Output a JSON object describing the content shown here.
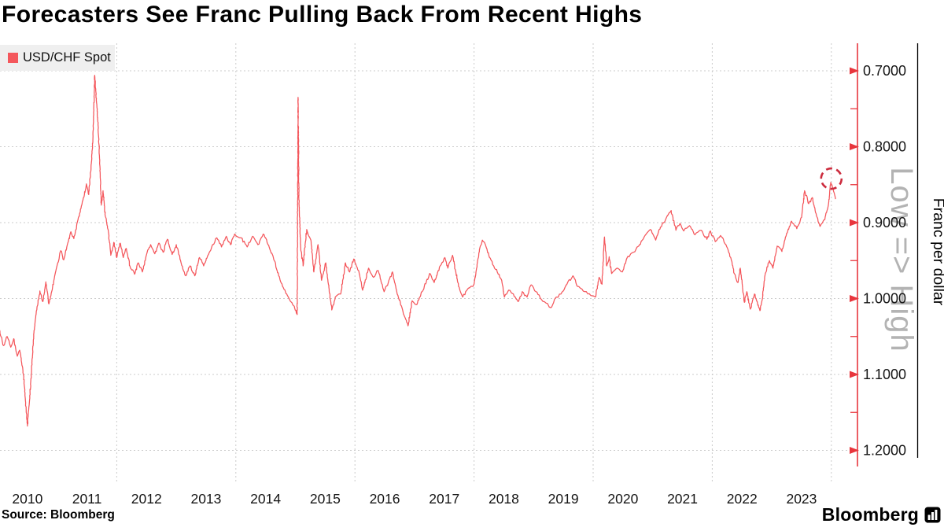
{
  "title": "Forecasters See Franc Pulling Back From Recent Highs",
  "legend": {
    "label": "USD/CHF Spot",
    "swatch_color": "#f4575c"
  },
  "source": "Source: Bloomberg",
  "logo": {
    "text": "Bloomberg",
    "icon": "bloomberg-bars-icon"
  },
  "chart_data": {
    "type": "line",
    "title": "Forecasters See Franc Pulling Back From Recent Highs",
    "legend_position": "top-left",
    "grid": true,
    "x_axis": {
      "tick_labels": [
        "2010",
        "2011",
        "2012",
        "2013",
        "2014",
        "2015",
        "2016",
        "2017",
        "2018",
        "2019",
        "2020",
        "2021",
        "2022",
        "2023"
      ],
      "gridline_years": [
        2012,
        2014,
        2016,
        2018,
        2020,
        2022,
        2024
      ],
      "range_years": [
        2010.0,
        2024.4
      ]
    },
    "y_axis": {
      "title": "Franc per dollar",
      "direction_label": "Low => High",
      "inverted": true,
      "side": "right",
      "ticks": [
        {
          "label": "0.7000",
          "value": 0.7
        },
        {
          "label": "0.8000",
          "value": 0.8
        },
        {
          "label": "0.9000",
          "value": 0.9
        },
        {
          "label": "1.0000",
          "value": 1.0
        },
        {
          "label": "1.1000",
          "value": 1.1
        },
        {
          "label": "1.2000",
          "value": 1.2
        }
      ],
      "minor_ticks": [
        0.75,
        0.85,
        0.95,
        1.05,
        1.15
      ]
    },
    "colors": {
      "line": "#f4575c",
      "axis": "#e8363d",
      "grid": "#cbcbcb",
      "annotation": "#cc2b3d",
      "direction_label": "#b3b3b3",
      "tick_text": "#141414"
    },
    "annotation": {
      "type": "dashed-circle",
      "year": 2024.0,
      "value": 0.842,
      "radius_px": 13,
      "meaning": "recent franc high circled"
    },
    "series": [
      {
        "name": "USD/CHF Spot",
        "color": "#f4575c",
        "points": [
          [
            2010.0,
            1.03
          ],
          [
            2010.04,
            1.046
          ],
          [
            2010.1,
            1.062
          ],
          [
            2010.16,
            1.05
          ],
          [
            2010.22,
            1.064
          ],
          [
            2010.27,
            1.053
          ],
          [
            2010.33,
            1.076
          ],
          [
            2010.37,
            1.068
          ],
          [
            2010.42,
            1.091
          ],
          [
            2010.46,
            1.125
          ],
          [
            2010.5,
            1.168
          ],
          [
            2010.53,
            1.14
          ],
          [
            2010.57,
            1.095
          ],
          [
            2010.61,
            1.044
          ],
          [
            2010.66,
            1.012
          ],
          [
            2010.71,
            0.99
          ],
          [
            2010.76,
            1.004
          ],
          [
            2010.81,
            0.978
          ],
          [
            2010.86,
            1.007
          ],
          [
            2010.91,
            0.99
          ],
          [
            2010.97,
            0.966
          ],
          [
            2011.01,
            0.953
          ],
          [
            2011.06,
            0.937
          ],
          [
            2011.11,
            0.949
          ],
          [
            2011.17,
            0.929
          ],
          [
            2011.23,
            0.912
          ],
          [
            2011.28,
            0.921
          ],
          [
            2011.34,
            0.899
          ],
          [
            2011.4,
            0.881
          ],
          [
            2011.45,
            0.866
          ],
          [
            2011.49,
            0.849
          ],
          [
            2011.53,
            0.863
          ],
          [
            2011.57,
            0.824
          ],
          [
            2011.6,
            0.79
          ],
          [
            2011.63,
            0.706
          ],
          [
            2011.65,
            0.728
          ],
          [
            2011.68,
            0.762
          ],
          [
            2011.71,
            0.812
          ],
          [
            2011.74,
            0.877
          ],
          [
            2011.77,
            0.858
          ],
          [
            2011.81,
            0.892
          ],
          [
            2011.86,
            0.912
          ],
          [
            2011.9,
            0.943
          ],
          [
            2011.95,
            0.926
          ],
          [
            2012.0,
            0.946
          ],
          [
            2012.06,
            0.927
          ],
          [
            2012.11,
            0.946
          ],
          [
            2012.16,
            0.934
          ],
          [
            2012.22,
            0.957
          ],
          [
            2012.3,
            0.968
          ],
          [
            2012.36,
            0.953
          ],
          [
            2012.43,
            0.965
          ],
          [
            2012.5,
            0.942
          ],
          [
            2012.57,
            0.929
          ],
          [
            2012.64,
            0.941
          ],
          [
            2012.71,
            0.927
          ],
          [
            2012.78,
            0.939
          ],
          [
            2012.85,
            0.922
          ],
          [
            2012.93,
            0.942
          ],
          [
            2013.0,
            0.929
          ],
          [
            2013.08,
            0.953
          ],
          [
            2013.16,
            0.97
          ],
          [
            2013.23,
            0.957
          ],
          [
            2013.31,
            0.97
          ],
          [
            2013.39,
            0.946
          ],
          [
            2013.46,
            0.957
          ],
          [
            2013.54,
            0.942
          ],
          [
            2013.61,
            0.929
          ],
          [
            2013.68,
            0.92
          ],
          [
            2013.76,
            0.932
          ],
          [
            2013.84,
            0.918
          ],
          [
            2013.91,
            0.929
          ],
          [
            2013.98,
            0.915
          ],
          [
            2014.09,
            0.92
          ],
          [
            2014.19,
            0.932
          ],
          [
            2014.28,
            0.918
          ],
          [
            2014.37,
            0.929
          ],
          [
            2014.46,
            0.915
          ],
          [
            2014.54,
            0.929
          ],
          [
            2014.63,
            0.946
          ],
          [
            2014.72,
            0.97
          ],
          [
            2014.81,
            0.988
          ],
          [
            2014.9,
            1.001
          ],
          [
            2014.98,
            1.01
          ],
          [
            2015.03,
            1.021
          ],
          [
            2015.045,
            0.735
          ],
          [
            2015.06,
            0.87
          ],
          [
            2015.09,
            0.934
          ],
          [
            2015.13,
            0.957
          ],
          [
            2015.19,
            0.909
          ],
          [
            2015.26,
            0.923
          ],
          [
            2015.31,
            0.965
          ],
          [
            2015.38,
            0.929
          ],
          [
            2015.44,
            0.976
          ],
          [
            2015.51,
            0.953
          ],
          [
            2015.61,
            1.015
          ],
          [
            2015.67,
            0.998
          ],
          [
            2015.76,
            0.994
          ],
          [
            2015.84,
            0.953
          ],
          [
            2015.91,
            0.965
          ],
          [
            2015.98,
            0.948
          ],
          [
            2016.06,
            0.963
          ],
          [
            2016.13,
            0.989
          ],
          [
            2016.23,
            0.96
          ],
          [
            2016.31,
            0.972
          ],
          [
            2016.39,
            0.963
          ],
          [
            2016.49,
            0.991
          ],
          [
            2016.56,
            0.979
          ],
          [
            2016.63,
            0.965
          ],
          [
            2016.71,
            0.994
          ],
          [
            2016.79,
            1.012
          ],
          [
            2016.89,
            1.036
          ],
          [
            2016.96,
            1.003
          ],
          [
            2017.04,
            1.008
          ],
          [
            2017.13,
            0.991
          ],
          [
            2017.26,
            0.967
          ],
          [
            2017.33,
            0.979
          ],
          [
            2017.43,
            0.957
          ],
          [
            2017.51,
            0.946
          ],
          [
            2017.56,
            0.96
          ],
          [
            2017.64,
            0.943
          ],
          [
            2017.74,
            0.984
          ],
          [
            2017.81,
            0.998
          ],
          [
            2017.88,
            0.989
          ],
          [
            2018.0,
            0.981
          ],
          [
            2018.09,
            0.936
          ],
          [
            2018.14,
            0.923
          ],
          [
            2018.19,
            0.929
          ],
          [
            2018.26,
            0.946
          ],
          [
            2018.33,
            0.957
          ],
          [
            2018.39,
            0.965
          ],
          [
            2018.46,
            0.975
          ],
          [
            2018.51,
            0.998
          ],
          [
            2018.58,
            0.989
          ],
          [
            2018.66,
            0.994
          ],
          [
            2018.74,
            1.004
          ],
          [
            2018.81,
            0.991
          ],
          [
            2018.89,
            0.998
          ],
          [
            2018.96,
            0.982
          ],
          [
            2019.04,
            0.991
          ],
          [
            2019.13,
            1.001
          ],
          [
            2019.21,
            1.006
          ],
          [
            2019.29,
            1.012
          ],
          [
            2019.38,
            0.998
          ],
          [
            2019.46,
            0.994
          ],
          [
            2019.56,
            0.981
          ],
          [
            2019.66,
            0.97
          ],
          [
            2019.74,
            0.984
          ],
          [
            2019.86,
            0.991
          ],
          [
            2019.96,
            0.996
          ],
          [
            2020.04,
            0.998
          ],
          [
            2020.1,
            0.972
          ],
          [
            2020.15,
            0.981
          ],
          [
            2020.19,
            0.919
          ],
          [
            2020.23,
            0.957
          ],
          [
            2020.27,
            0.945
          ],
          [
            2020.31,
            0.967
          ],
          [
            2020.41,
            0.96
          ],
          [
            2020.49,
            0.965
          ],
          [
            2020.56,
            0.948
          ],
          [
            2020.68,
            0.939
          ],
          [
            2020.78,
            0.929
          ],
          [
            2020.87,
            0.917
          ],
          [
            2020.96,
            0.909
          ],
          [
            2021.05,
            0.923
          ],
          [
            2021.13,
            0.906
          ],
          [
            2021.22,
            0.895
          ],
          [
            2021.31,
            0.884
          ],
          [
            2021.39,
            0.91
          ],
          [
            2021.46,
            0.901
          ],
          [
            2021.52,
            0.911
          ],
          [
            2021.62,
            0.904
          ],
          [
            2021.71,
            0.916
          ],
          [
            2021.81,
            0.91
          ],
          [
            2021.91,
            0.922
          ],
          [
            2021.97,
            0.911
          ],
          [
            2022.05,
            0.925
          ],
          [
            2022.14,
            0.917
          ],
          [
            2022.23,
            0.929
          ],
          [
            2022.31,
            0.946
          ],
          [
            2022.37,
            0.967
          ],
          [
            2022.43,
            0.979
          ],
          [
            2022.47,
            0.96
          ],
          [
            2022.54,
            1.005
          ],
          [
            2022.58,
            0.991
          ],
          [
            2022.64,
            1.014
          ],
          [
            2022.71,
            0.994
          ],
          [
            2022.8,
            1.016
          ],
          [
            2022.84,
            1.001
          ],
          [
            2022.89,
            0.967
          ],
          [
            2022.96,
            0.95
          ],
          [
            2023.02,
            0.96
          ],
          [
            2023.09,
            0.931
          ],
          [
            2023.17,
            0.938
          ],
          [
            2023.23,
            0.919
          ],
          [
            2023.33,
            0.898
          ],
          [
            2023.42,
            0.908
          ],
          [
            2023.5,
            0.893
          ],
          [
            2023.55,
            0.858
          ],
          [
            2023.62,
            0.875
          ],
          [
            2023.68,
            0.867
          ],
          [
            2023.75,
            0.891
          ],
          [
            2023.81,
            0.905
          ],
          [
            2023.89,
            0.896
          ],
          [
            2023.95,
            0.877
          ],
          [
            2023.99,
            0.847
          ],
          [
            2024.03,
            0.856
          ],
          [
            2024.07,
            0.869
          ]
        ]
      }
    ]
  }
}
